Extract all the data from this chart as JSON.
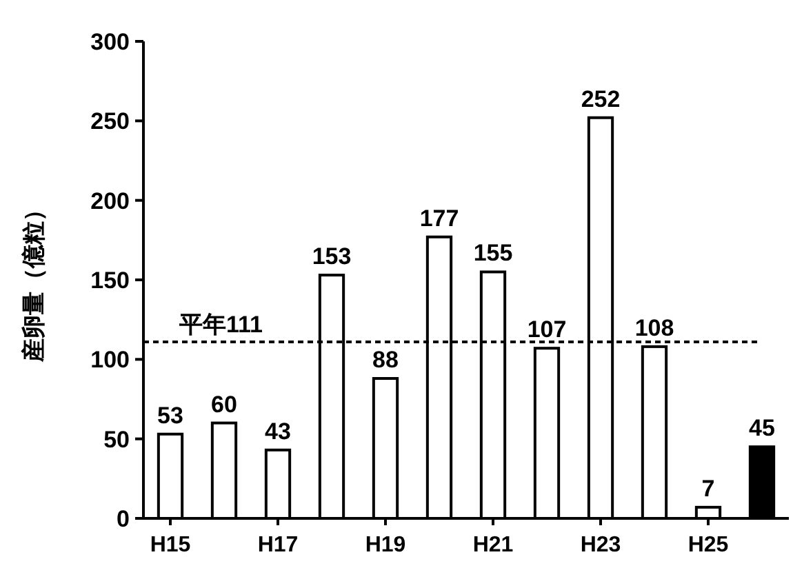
{
  "chart_data": {
    "type": "bar",
    "ylabel": "産卵量（億粒）",
    "categories": [
      "H15",
      null,
      "H17",
      null,
      "H19",
      null,
      "H21",
      null,
      "H23",
      null,
      "H25",
      null
    ],
    "values": [
      53,
      60,
      43,
      153,
      88,
      177,
      155,
      107,
      252,
      108,
      7,
      45
    ],
    "colors": [
      "#ffffff",
      "#ffffff",
      "#ffffff",
      "#ffffff",
      "#ffffff",
      "#ffffff",
      "#ffffff",
      "#ffffff",
      "#ffffff",
      "#ffffff",
      "#ffffff",
      "#000000"
    ],
    "ylim": [
      0,
      300
    ],
    "yticks": [
      0,
      50,
      100,
      150,
      200,
      250,
      300
    ],
    "data_labels": true,
    "ref_lines": [
      {
        "axis": "y",
        "value": 111,
        "label": "平年111",
        "line_style": "dashed",
        "color": "#000000"
      }
    ]
  }
}
